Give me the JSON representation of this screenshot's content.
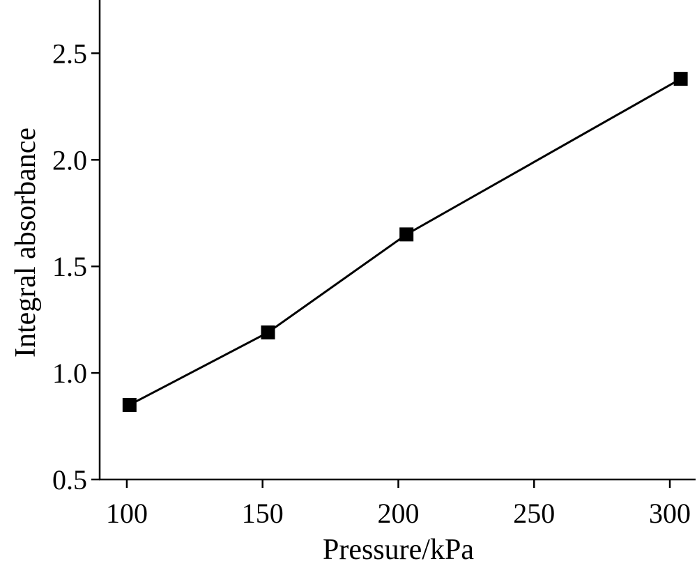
{
  "chart_data": {
    "type": "line",
    "title": "",
    "xlabel": "Pressure/kPa",
    "ylabel": "Integral absorbance",
    "x": [
      101,
      152,
      203,
      304
    ],
    "series": [
      {
        "values": [
          0.85,
          1.19,
          1.65,
          2.38
        ]
      }
    ],
    "xlim": [
      90,
      310
    ],
    "ylim": [
      0.5,
      2.75
    ],
    "xticks": [
      100,
      150,
      200,
      250,
      300
    ],
    "xtick_labels": [
      "100",
      "150",
      "200",
      "250",
      "300"
    ],
    "yticks": [
      0.5,
      1.0,
      1.5,
      2.0,
      2.5
    ],
    "ytick_labels": [
      "0.5",
      "1.0",
      "1.5",
      "2.0",
      "2.5"
    ],
    "grid": false,
    "marker": "square",
    "color": "#000000"
  }
}
